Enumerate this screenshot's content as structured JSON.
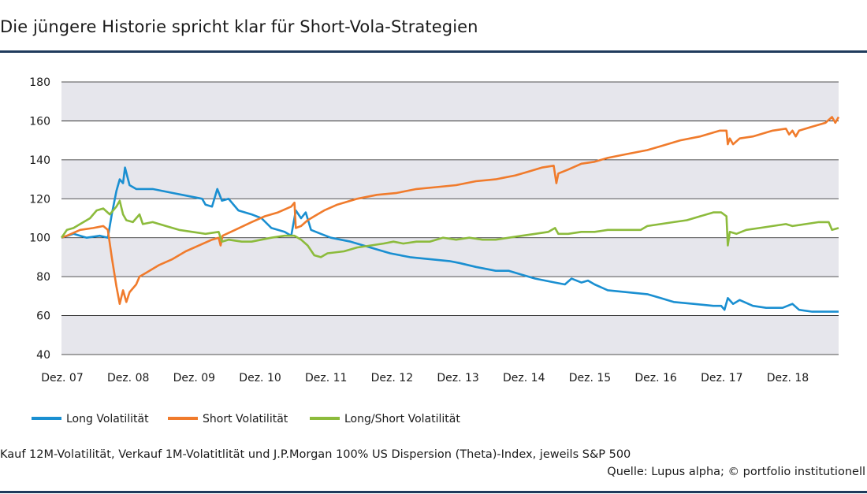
{
  "title": "Die jüngere Historie spricht klar für Short-Vola-Strategien",
  "footnote": "Kauf 12M-Volatilität, Verkauf 1M-Volatitlität und J.P.Morgan 100% US Dispersion (Theta)-Index, jeweils S&P 500",
  "source": "Quelle: Lupus alpha; © portfolio institutionell",
  "colors": {
    "plot_band": "#e6e6ec",
    "grid": "#1a1a1a",
    "rule": "#1f3b5c"
  },
  "chart_data": {
    "type": "line",
    "x_tick_labels": [
      "Dez. 07",
      "Dez. 08",
      "Dez. 09",
      "Dez. 10",
      "Dez. 11",
      "Dez. 12",
      "Dez. 13",
      "Dez. 14",
      "Dez. 15",
      "Dez. 16",
      "Dez. 17",
      "Dez. 18"
    ],
    "x_range": [
      2007.917,
      2019.7
    ],
    "ylim": [
      40,
      180
    ],
    "y_ticks": [
      40,
      60,
      80,
      100,
      120,
      140,
      160,
      180
    ],
    "grid": true,
    "legend_position": "bottom-left",
    "series": [
      {
        "name": "Long Volatilität",
        "color": "#1a8fd1",
        "points": [
          [
            2007.917,
            100
          ],
          [
            2008.1,
            102
          ],
          [
            2008.3,
            100
          ],
          [
            2008.5,
            101
          ],
          [
            2008.62,
            100
          ],
          [
            2008.68,
            112
          ],
          [
            2008.75,
            124
          ],
          [
            2008.8,
            130
          ],
          [
            2008.85,
            128
          ],
          [
            2008.88,
            136
          ],
          [
            2008.95,
            127
          ],
          [
            2009.05,
            125
          ],
          [
            2009.3,
            125
          ],
          [
            2009.6,
            123
          ],
          [
            2009.9,
            121
          ],
          [
            2010.05,
            120
          ],
          [
            2010.1,
            117
          ],
          [
            2010.2,
            116
          ],
          [
            2010.28,
            125
          ],
          [
            2010.35,
            119
          ],
          [
            2010.45,
            120
          ],
          [
            2010.6,
            114
          ],
          [
            2010.8,
            112
          ],
          [
            2010.95,
            110
          ],
          [
            2011.1,
            105
          ],
          [
            2011.3,
            103
          ],
          [
            2011.4,
            101
          ],
          [
            2011.47,
            114
          ],
          [
            2011.55,
            110
          ],
          [
            2011.62,
            113
          ],
          [
            2011.7,
            104
          ],
          [
            2011.85,
            102
          ],
          [
            2012.0,
            100
          ],
          [
            2012.3,
            98
          ],
          [
            2012.6,
            95
          ],
          [
            2012.9,
            92
          ],
          [
            2013.2,
            90
          ],
          [
            2013.5,
            89
          ],
          [
            2013.8,
            88
          ],
          [
            2013.95,
            87
          ],
          [
            2014.2,
            85
          ],
          [
            2014.5,
            83
          ],
          [
            2014.7,
            83
          ],
          [
            2014.9,
            81
          ],
          [
            2015.1,
            79
          ],
          [
            2015.4,
            77
          ],
          [
            2015.55,
            76
          ],
          [
            2015.65,
            79
          ],
          [
            2015.8,
            77
          ],
          [
            2015.9,
            78
          ],
          [
            2016.0,
            76
          ],
          [
            2016.2,
            73
          ],
          [
            2016.5,
            72
          ],
          [
            2016.8,
            71
          ],
          [
            2017.0,
            69
          ],
          [
            2017.2,
            67
          ],
          [
            2017.5,
            66
          ],
          [
            2017.8,
            65
          ],
          [
            2017.92,
            65
          ],
          [
            2017.97,
            63
          ],
          [
            2018.02,
            69
          ],
          [
            2018.1,
            66
          ],
          [
            2018.2,
            68
          ],
          [
            2018.4,
            65
          ],
          [
            2018.6,
            64
          ],
          [
            2018.85,
            64
          ],
          [
            2019.0,
            66
          ],
          [
            2019.1,
            63
          ],
          [
            2019.3,
            62
          ],
          [
            2019.5,
            62
          ],
          [
            2019.7,
            62
          ]
        ]
      },
      {
        "name": "Short Volatilität",
        "color": "#f07b2c",
        "points": [
          [
            2007.917,
            100
          ],
          [
            2008.0,
            101
          ],
          [
            2008.2,
            104
          ],
          [
            2008.4,
            105
          ],
          [
            2008.55,
            106
          ],
          [
            2008.62,
            104
          ],
          [
            2008.68,
            90
          ],
          [
            2008.75,
            75
          ],
          [
            2008.8,
            66
          ],
          [
            2008.85,
            73
          ],
          [
            2008.9,
            67
          ],
          [
            2008.95,
            72
          ],
          [
            2009.05,
            76
          ],
          [
            2009.1,
            80
          ],
          [
            2009.2,
            82
          ],
          [
            2009.4,
            86
          ],
          [
            2009.6,
            89
          ],
          [
            2009.8,
            93
          ],
          [
            2010.0,
            96
          ],
          [
            2010.2,
            99
          ],
          [
            2010.3,
            100
          ],
          [
            2010.33,
            96
          ],
          [
            2010.36,
            101
          ],
          [
            2010.55,
            104
          ],
          [
            2010.8,
            108
          ],
          [
            2011.0,
            111
          ],
          [
            2011.2,
            113
          ],
          [
            2011.4,
            116
          ],
          [
            2011.45,
            118
          ],
          [
            2011.47,
            105
          ],
          [
            2011.55,
            106
          ],
          [
            2011.65,
            109
          ],
          [
            2011.75,
            111
          ],
          [
            2011.9,
            114
          ],
          [
            2012.1,
            117
          ],
          [
            2012.4,
            120
          ],
          [
            2012.7,
            122
          ],
          [
            2013.0,
            123
          ],
          [
            2013.3,
            125
          ],
          [
            2013.6,
            126
          ],
          [
            2013.9,
            127
          ],
          [
            2014.2,
            129
          ],
          [
            2014.5,
            130
          ],
          [
            2014.8,
            132
          ],
          [
            2015.0,
            134
          ],
          [
            2015.2,
            136
          ],
          [
            2015.38,
            137
          ],
          [
            2015.42,
            128
          ],
          [
            2015.45,
            133
          ],
          [
            2015.6,
            135
          ],
          [
            2015.8,
            138
          ],
          [
            2016.0,
            139
          ],
          [
            2016.2,
            141
          ],
          [
            2016.5,
            143
          ],
          [
            2016.8,
            145
          ],
          [
            2017.0,
            147
          ],
          [
            2017.3,
            150
          ],
          [
            2017.6,
            152
          ],
          [
            2017.9,
            155
          ],
          [
            2018.0,
            155
          ],
          [
            2018.02,
            148
          ],
          [
            2018.05,
            151
          ],
          [
            2018.1,
            148
          ],
          [
            2018.2,
            151
          ],
          [
            2018.4,
            152
          ],
          [
            2018.7,
            155
          ],
          [
            2018.9,
            156
          ],
          [
            2018.95,
            153
          ],
          [
            2019.0,
            155
          ],
          [
            2019.05,
            152
          ],
          [
            2019.1,
            155
          ],
          [
            2019.3,
            157
          ],
          [
            2019.5,
            159
          ],
          [
            2019.6,
            162
          ],
          [
            2019.65,
            159
          ],
          [
            2019.7,
            162
          ]
        ]
      },
      {
        "name": "Long/Short Volatilität",
        "color": "#8cbb3c",
        "points": [
          [
            2007.917,
            100
          ],
          [
            2008.0,
            104
          ],
          [
            2008.1,
            105
          ],
          [
            2008.2,
            107
          ],
          [
            2008.35,
            110
          ],
          [
            2008.45,
            114
          ],
          [
            2008.55,
            115
          ],
          [
            2008.65,
            112
          ],
          [
            2008.75,
            116
          ],
          [
            2008.8,
            119
          ],
          [
            2008.85,
            112
          ],
          [
            2008.9,
            109
          ],
          [
            2009.0,
            108
          ],
          [
            2009.1,
            112
          ],
          [
            2009.15,
            107
          ],
          [
            2009.3,
            108
          ],
          [
            2009.5,
            106
          ],
          [
            2009.7,
            104
          ],
          [
            2009.9,
            103
          ],
          [
            2010.1,
            102
          ],
          [
            2010.3,
            103
          ],
          [
            2010.35,
            98
          ],
          [
            2010.45,
            99
          ],
          [
            2010.65,
            98
          ],
          [
            2010.8,
            98
          ],
          [
            2010.95,
            99
          ],
          [
            2011.1,
            100
          ],
          [
            2011.3,
            101
          ],
          [
            2011.45,
            101
          ],
          [
            2011.55,
            99
          ],
          [
            2011.65,
            96
          ],
          [
            2011.75,
            91
          ],
          [
            2011.85,
            90
          ],
          [
            2011.95,
            92
          ],
          [
            2012.2,
            93
          ],
          [
            2012.4,
            95
          ],
          [
            2012.6,
            96
          ],
          [
            2012.8,
            97
          ],
          [
            2012.95,
            98
          ],
          [
            2013.1,
            97
          ],
          [
            2013.3,
            98
          ],
          [
            2013.5,
            98
          ],
          [
            2013.7,
            100
          ],
          [
            2013.9,
            99
          ],
          [
            2014.1,
            100
          ],
          [
            2014.3,
            99
          ],
          [
            2014.5,
            99
          ],
          [
            2014.7,
            100
          ],
          [
            2014.9,
            101
          ],
          [
            2015.1,
            102
          ],
          [
            2015.3,
            103
          ],
          [
            2015.4,
            105
          ],
          [
            2015.45,
            102
          ],
          [
            2015.6,
            102
          ],
          [
            2015.8,
            103
          ],
          [
            2016.0,
            103
          ],
          [
            2016.2,
            104
          ],
          [
            2016.5,
            104
          ],
          [
            2016.7,
            104
          ],
          [
            2016.8,
            106
          ],
          [
            2017.0,
            107
          ],
          [
            2017.2,
            108
          ],
          [
            2017.4,
            109
          ],
          [
            2017.6,
            111
          ],
          [
            2017.8,
            113
          ],
          [
            2017.92,
            113
          ],
          [
            2018.0,
            111
          ],
          [
            2018.02,
            96
          ],
          [
            2018.05,
            103
          ],
          [
            2018.15,
            102
          ],
          [
            2018.3,
            104
          ],
          [
            2018.5,
            105
          ],
          [
            2018.7,
            106
          ],
          [
            2018.9,
            107
          ],
          [
            2019.0,
            106
          ],
          [
            2019.2,
            107
          ],
          [
            2019.4,
            108
          ],
          [
            2019.55,
            108
          ],
          [
            2019.6,
            104
          ],
          [
            2019.7,
            105
          ]
        ]
      }
    ]
  }
}
